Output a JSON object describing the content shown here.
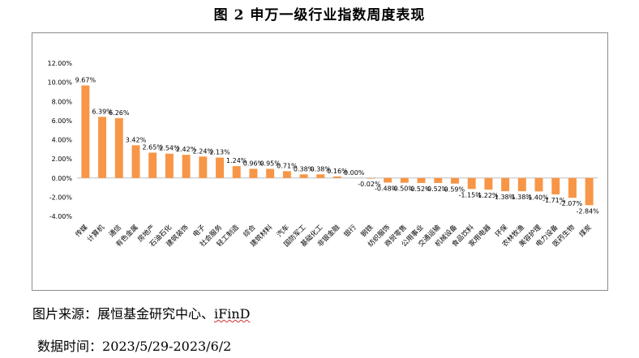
{
  "title": "图 2 申万一级行业指数周度表现",
  "footer": {
    "source_label": "图片来源：",
    "source_text": "展恒基金研究中心、",
    "source_ifind": "iFinD",
    "time_label": "数据时间：",
    "time_value": "2023/5/29-2023/6/2"
  },
  "colors": {
    "bar": "#F79646",
    "axis": "#bfbfbf",
    "text": "#000000"
  },
  "chart_data": {
    "type": "bar",
    "title": "",
    "xlabel": "",
    "ylabel": "",
    "ylim": [
      -4,
      12
    ],
    "yticks": [
      12,
      10,
      8,
      6,
      4,
      2,
      0,
      -2,
      -4
    ],
    "ytick_labels": [
      "12.00%",
      "10.00%",
      "8.00%",
      "6.00%",
      "4.00%",
      "2.00%",
      "0.00%",
      "-2.00%",
      "-4.00%"
    ],
    "grid": false,
    "legend": false,
    "categories": [
      "传媒",
      "计算机",
      "通信",
      "有色金属",
      "房地产",
      "石油石化",
      "建筑装饰",
      "电子",
      "社会服务",
      "轻工制造",
      "综合",
      "建筑材料",
      "汽车",
      "国防军工",
      "基础化工",
      "非银金融",
      "银行",
      "钢铁",
      "纺织服饰",
      "商贸零售",
      "公用事业",
      "交通运输",
      "机械设备",
      "食品饮料",
      "家用电器",
      "环保",
      "农林牧渔",
      "美容护理",
      "电力设备",
      "医药生物",
      "煤炭"
    ],
    "values": [
      9.67,
      6.39,
      6.26,
      3.42,
      2.65,
      2.54,
      2.42,
      2.24,
      2.13,
      1.24,
      0.96,
      0.95,
      0.71,
      0.38,
      0.38,
      0.16,
      0.0,
      -0.02,
      -0.48,
      -0.5,
      -0.52,
      -0.52,
      -0.59,
      -1.15,
      -1.22,
      -1.38,
      -1.38,
      -1.4,
      -1.71,
      -2.07,
      -2.84
    ],
    "value_labels": [
      "9.67%",
      "6.39%",
      "6.26%",
      "3.42%",
      "2.65%",
      "2.54%",
      "2.42%",
      "2.24%",
      "2.13%",
      "1.24%",
      "0.96%",
      "0.95%",
      "0.71%",
      "0.38%",
      "0.38%",
      "0.16%",
      "0.00%",
      "-0.02%",
      "-0.48%",
      "-0.50%",
      "-0.52%",
      "-0.52%",
      "-0.59%",
      "-1.15%",
      "-1.22%",
      "-1.38%",
      "-1.38%",
      "-1.40%",
      "-1.71%",
      "-2.07%",
      "-2.84%"
    ]
  }
}
